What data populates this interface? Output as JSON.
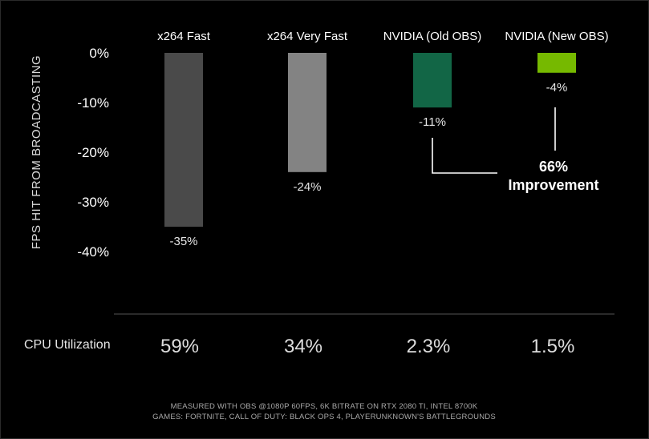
{
  "chart_data": {
    "type": "bar",
    "categories": [
      "x264 Fast",
      "x264 Very Fast",
      "NVIDIA (Old OBS)",
      "NVIDIA (New OBS)"
    ],
    "values": [
      -35,
      -24,
      -11,
      -4
    ],
    "value_labels": [
      "-35%",
      "-24%",
      "-11%",
      "-4%"
    ],
    "colors": [
      "#4a4a4a",
      "#838383",
      "#126646",
      "#76b900"
    ],
    "ylabel": "FPS HIT FROM BROADCASTING",
    "ylim": [
      -40,
      0
    ],
    "yticks": [
      0,
      -10,
      -20,
      -30,
      -40
    ],
    "ytick_labels": [
      "0%",
      "-10%",
      "-20%",
      "-30%",
      "-40%"
    ],
    "grid": false,
    "annotation": {
      "line1": "66%",
      "line2": "Improvement"
    },
    "cpu_utilization": {
      "label": "CPU Utilization",
      "values": [
        "59%",
        "34%",
        "2.3%",
        "1.5%"
      ]
    },
    "footnote": [
      "MEASURED WITH OBS @1080P 60FPS, 6K BITRATE ON RTX 2080 TI, INTEL 8700K",
      "GAMES: FORTNITE, CALL OF DUTY: BLACK OPS 4, PLAYERUNKNOWN'S BATTLEGROUNDS"
    ]
  }
}
